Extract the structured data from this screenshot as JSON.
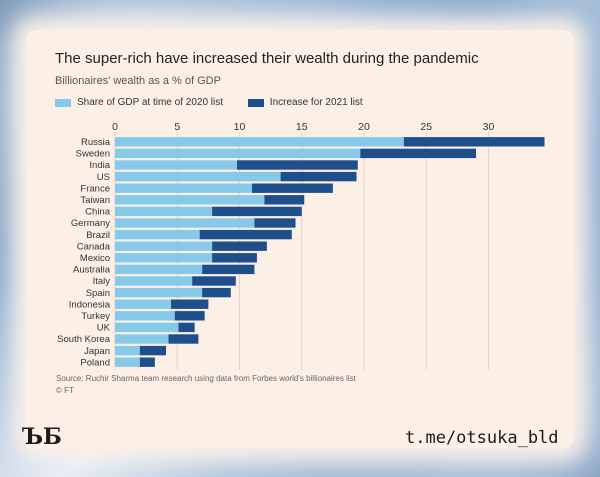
{
  "title": "The super-rich have increased their wealth during the pandemic",
  "subtitle": "Billionaires' wealth as a % of GDP",
  "source_text": "Source: Ruchir Sharma team research using data from Forbes world's billionaires list",
  "copyright": "© FT",
  "logo_text": "ЪБ",
  "channel_handle": "t.me/otsuka_bld",
  "colors": {
    "base": "#87c9e9",
    "increase": "#1f4e8c",
    "axis_text": "#333333",
    "grid": "#e2d4cb"
  },
  "chart_data": {
    "type": "bar",
    "orientation": "horizontal",
    "stacked": true,
    "title": "The super-rich have increased their wealth during the pandemic",
    "subtitle": "Billionaires' wealth as a % of GDP",
    "xlabel": "",
    "ylabel": "",
    "xlim": [
      0,
      35
    ],
    "xticks": [
      0,
      5,
      10,
      15,
      20,
      25,
      30
    ],
    "grid": true,
    "legend_position": "top-left",
    "categories": [
      "Russia",
      "Sweden",
      "India",
      "US",
      "France",
      "Taiwan",
      "China",
      "Germany",
      "Brazil",
      "Canada",
      "Mexico",
      "Australia",
      "Italy",
      "Spain",
      "Indonesia",
      "Turkey",
      "UK",
      "South Korea",
      "Japan",
      "Poland"
    ],
    "series": [
      {
        "name": "Share of GDP at time of 2020 list",
        "values": [
          23.2,
          19.7,
          9.8,
          13.3,
          11.0,
          12.0,
          7.8,
          11.2,
          6.8,
          7.8,
          7.8,
          7.0,
          6.2,
          7.0,
          4.5,
          4.8,
          5.1,
          4.3,
          2.0,
          2.0
        ]
      },
      {
        "name": "Increase for 2021 list",
        "values": [
          11.3,
          9.3,
          9.7,
          6.1,
          6.5,
          3.2,
          7.2,
          3.3,
          7.4,
          4.4,
          3.6,
          4.2,
          3.5,
          2.3,
          3.0,
          2.4,
          1.3,
          2.4,
          2.1,
          1.2
        ]
      }
    ]
  }
}
